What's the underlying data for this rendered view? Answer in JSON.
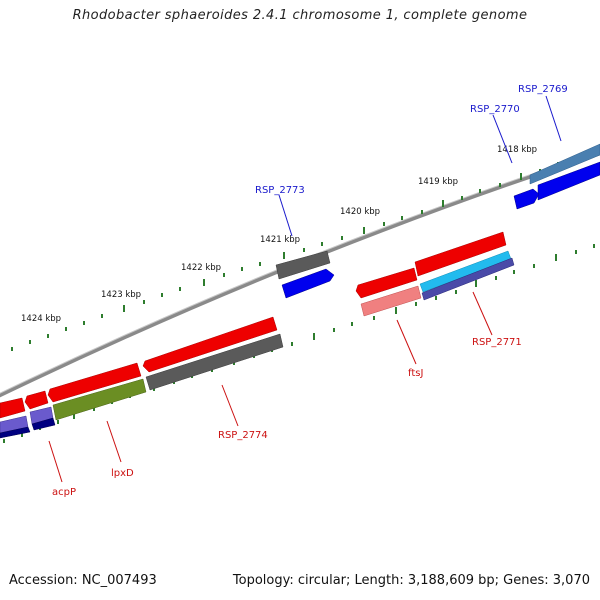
{
  "title": "Rhodobacter sphaeroides 2.4.1 chromosome 1, complete genome",
  "footer": {
    "accession": "Accession: NC_007493",
    "topology": "Topology: circular; Length: 3,188,609 bp; Genes: 3,070"
  },
  "kbp_labels": [
    "1418 kbp",
    "1419 kbp",
    "1420 kbp",
    "1421 kbp",
    "1422 kbp",
    "1423 kbp",
    "1424 kbp"
  ],
  "gene_labels": {
    "forward": [
      "RSP_2769",
      "RSP_2770",
      "RSP_2773"
    ],
    "reverse": [
      "RSP_2771",
      "ftsJ",
      "RSP_2774",
      "lpxD",
      "acpP"
    ]
  },
  "colors": {
    "backbone": "#8a8a8a",
    "tick": "#2e7d2e",
    "forward_label": "#1a1acc",
    "reverse_label": "#cc1111",
    "red_gene": "#ee0000",
    "gray_gene": "#5a5a5a",
    "blue_gene": "#0000ee",
    "olive_gene": "#6b8e23"
  }
}
